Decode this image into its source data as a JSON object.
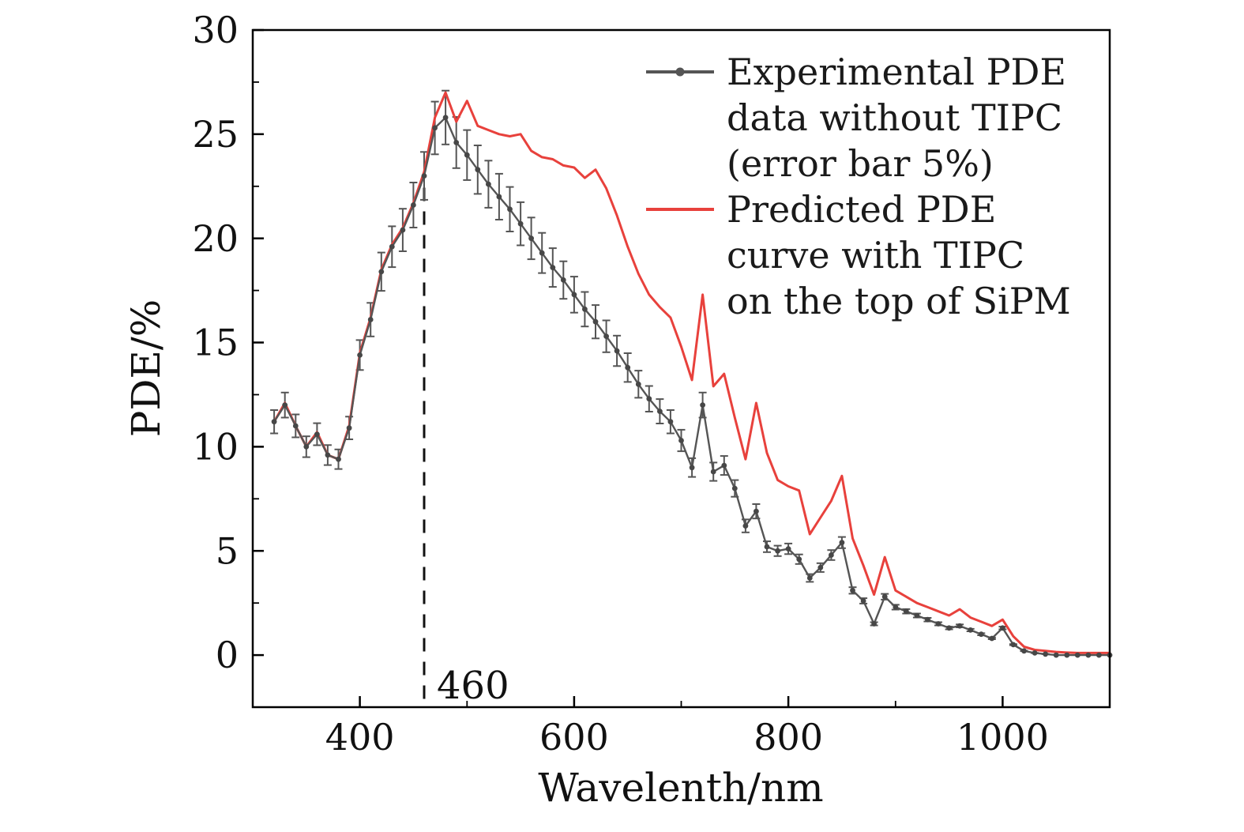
{
  "chart_data": {
    "type": "line",
    "title": "",
    "xlabel": "Wavelenth/nm",
    "ylabel": "PDE/%",
    "xlim": [
      300,
      1100
    ],
    "ylim": [
      -2.5,
      30
    ],
    "grid": false,
    "x_major_ticks": [
      400,
      600,
      800,
      1000
    ],
    "x_major_tick_labels": [
      "400",
      "600",
      "800",
      "1000"
    ],
    "x_minor_ticks": [
      300,
      500,
      700,
      900,
      1100
    ],
    "y_major_ticks": [
      0,
      5,
      10,
      15,
      20,
      25,
      30
    ],
    "y_major_tick_labels": [
      "0",
      "5",
      "10",
      "15",
      "20",
      "25",
      "30"
    ],
    "y_minor_ticks": [
      2.5,
      7.5,
      12.5,
      17.5,
      22.5,
      27.5
    ],
    "annotation": {
      "label": "460",
      "x": 460,
      "line_y_from": -2.1,
      "line_y_to": 23.2,
      "line_style": "dashed",
      "line_color": "#111111"
    },
    "x": [
      320,
      330,
      340,
      350,
      360,
      370,
      380,
      390,
      400,
      410,
      420,
      430,
      440,
      450,
      460,
      470,
      480,
      490,
      500,
      510,
      520,
      530,
      540,
      550,
      560,
      570,
      580,
      590,
      600,
      610,
      620,
      630,
      640,
      650,
      660,
      670,
      680,
      690,
      700,
      710,
      720,
      730,
      740,
      750,
      760,
      770,
      780,
      790,
      800,
      810,
      820,
      830,
      840,
      850,
      860,
      870,
      880,
      890,
      900,
      910,
      920,
      930,
      940,
      950,
      960,
      970,
      980,
      990,
      1000,
      1010,
      1020,
      1030,
      1040,
      1050,
      1060,
      1070,
      1080,
      1090,
      1100
    ],
    "series": [
      {
        "name": "Experimental PDE data without TIPC (error bar 5%)",
        "color": "#555555",
        "marker": "circle",
        "error_percent": 5,
        "values": [
          11.2,
          12.0,
          11.0,
          10.0,
          10.6,
          9.6,
          9.4,
          10.9,
          14.4,
          16.1,
          18.4,
          19.6,
          20.4,
          21.6,
          23.0,
          25.3,
          25.8,
          24.6,
          24.0,
          23.3,
          22.6,
          22.0,
          21.4,
          20.7,
          20.0,
          19.3,
          18.6,
          18.0,
          17.3,
          16.6,
          16.0,
          15.3,
          14.6,
          13.8,
          13.0,
          12.3,
          11.7,
          11.2,
          10.3,
          9.0,
          12.0,
          8.8,
          9.1,
          8.0,
          6.2,
          6.9,
          5.2,
          5.0,
          5.1,
          4.6,
          3.7,
          4.2,
          4.8,
          5.4,
          3.1,
          2.6,
          1.5,
          2.8,
          2.3,
          2.1,
          1.9,
          1.7,
          1.5,
          1.3,
          1.4,
          1.2,
          1.0,
          0.8,
          1.3,
          0.5,
          0.2,
          0.1,
          0.05,
          0.0,
          0.0,
          0.0,
          0.0,
          0.0,
          0.0
        ]
      },
      {
        "name": "Predicted PDE curve with TIPC on the top of SiPM",
        "color": "#e8413c",
        "marker": "none",
        "values": [
          11.2,
          12.1,
          11.0,
          10.0,
          10.7,
          9.6,
          9.4,
          11.0,
          14.5,
          16.2,
          18.5,
          19.7,
          20.5,
          21.7,
          23.2,
          25.8,
          27.0,
          25.6,
          26.6,
          25.4,
          25.2,
          25.0,
          24.9,
          25.0,
          24.2,
          23.9,
          23.8,
          23.5,
          23.4,
          22.9,
          23.3,
          22.4,
          21.1,
          19.6,
          18.3,
          17.3,
          16.7,
          16.2,
          14.8,
          13.2,
          17.3,
          12.9,
          13.5,
          11.4,
          9.4,
          12.1,
          9.7,
          8.4,
          8.1,
          7.9,
          5.8,
          6.6,
          7.4,
          8.6,
          5.6,
          4.3,
          2.9,
          4.7,
          3.1,
          2.8,
          2.5,
          2.3,
          2.1,
          1.9,
          2.2,
          1.8,
          1.6,
          1.4,
          1.7,
          0.9,
          0.4,
          0.25,
          0.2,
          0.15,
          0.12,
          0.1,
          0.1,
          0.1,
          0.1
        ]
      }
    ],
    "legend": {
      "position": "top-right",
      "frame": false,
      "items": [
        {
          "lines": [
            "Experimental PDE",
            "data without TIPC",
            "(error bar 5%)"
          ],
          "color": "#555555",
          "has_marker": true
        },
        {
          "lines": [
            "Predicted PDE",
            "curve with TIPC",
            "on the top of SiPM"
          ],
          "color": "#e8413c",
          "has_marker": false
        }
      ]
    }
  }
}
